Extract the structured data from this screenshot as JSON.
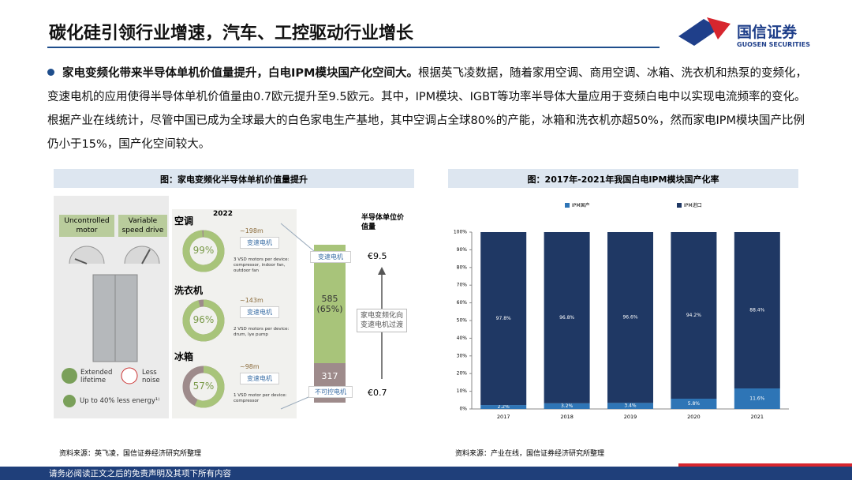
{
  "header": {
    "title": "碳化硅引领行业增速，汽车、工控驱动行业增长",
    "logo_cn": "国信证券",
    "logo_en": "GUOSEN SECURITIES"
  },
  "paragraph": {
    "lead": "家电变频化带来半导体单机价值量提升，白电IPM模块国产化空间大。",
    "text": "根据英飞凌数据，随着家用空调、商用空调、冰箱、洗衣机和热泵的变频化，变速电机的应用使得半导体单机价值量由0.7欧元提升至9.5欧元。其中，IPM模块、IGBT等功率半导体大量应用于变频白电中以实现电流频率的变化。根据产业在线统计，尽管中国已成为全球最大的白色家电生产基地，其中空调占全球80%的产能，冰箱和洗衣机亦超50%，然而家电IPM模块国产比例仍小于15%，国产化空间较大。"
  },
  "left_figure": {
    "caption": "图：家电变频化半导体单机价值量提升",
    "motor_types": [
      "Uncontrolled motor",
      "Variable speed drive"
    ],
    "benefits": [
      "Extended lifetime",
      "Less noise",
      "Up to 40% less energy¹⁾"
    ],
    "year": "2022",
    "appliances": [
      {
        "name": "空调",
        "units": "~198m",
        "motor": "变速电机",
        "share": "99%",
        "note": "3 VSD motors per device: compressor, indoor fan, outdoor fan"
      },
      {
        "name": "洗衣机",
        "units": "~143m",
        "motor": "变速电机",
        "share": "96%",
        "note": "2 VSD motors per device: drum, lye pump"
      },
      {
        "name": "冰箱",
        "units": "~98m",
        "motor": "变速电机",
        "share": "57%",
        "note": "1 VSD motor per device: compressor"
      }
    ],
    "value_title": "半导体单位价值量",
    "bar_top_label": "变速电机",
    "bar_top_value": "585 (65%)",
    "bar_bottom_value": "317",
    "bar_bottom_label": "不可控电机",
    "high_value": "€9.5",
    "low_value": "€0.7",
    "transition": "家电变频化向变速电机过渡",
    "source": "资料来源：英飞凌，国信证券经济研究所整理"
  },
  "chart_data": {
    "type": "stacked_bar",
    "title": "图：2017年-2021年我国白电IPM模块国产化率",
    "categories": [
      "2017",
      "2018",
      "2019",
      "2020",
      "2021"
    ],
    "series": [
      {
        "name": "IPM国产",
        "color": "#2e75b6",
        "values": [
          2.2,
          3.2,
          3.4,
          5.8,
          11.6
        ],
        "value_labels": [
          "2.2%",
          "3.2%",
          "3.4%",
          "5.8%",
          "11.6%"
        ]
      },
      {
        "name": "IPM进口",
        "color": "#1f3864",
        "values": [
          97.8,
          96.8,
          96.6,
          94.2,
          88.4
        ],
        "value_labels": [
          "97.8%",
          "96.8%",
          "96.6%",
          "94.2%",
          "88.4%"
        ]
      }
    ],
    "ylim": [
      0,
      100
    ],
    "yticks": [
      {
        "value": 0,
        "label": "0%"
      },
      {
        "value": 10,
        "label": "10%"
      },
      {
        "value": 20,
        "label": "20%"
      },
      {
        "value": 30,
        "label": "30%"
      },
      {
        "value": 40,
        "label": "40%"
      },
      {
        "value": 50,
        "label": "50%"
      },
      {
        "value": 60,
        "label": "60%"
      },
      {
        "value": 70,
        "label": "70%"
      },
      {
        "value": 80,
        "label": "80%"
      },
      {
        "value": 90,
        "label": "90%"
      },
      {
        "value": 100,
        "label": "100%"
      }
    ],
    "legend": "top",
    "source": "资料来源：产业在线，国信证券经济研究所整理"
  },
  "footer": "请务必阅读正文之后的免责声明及其项下所有内容"
}
